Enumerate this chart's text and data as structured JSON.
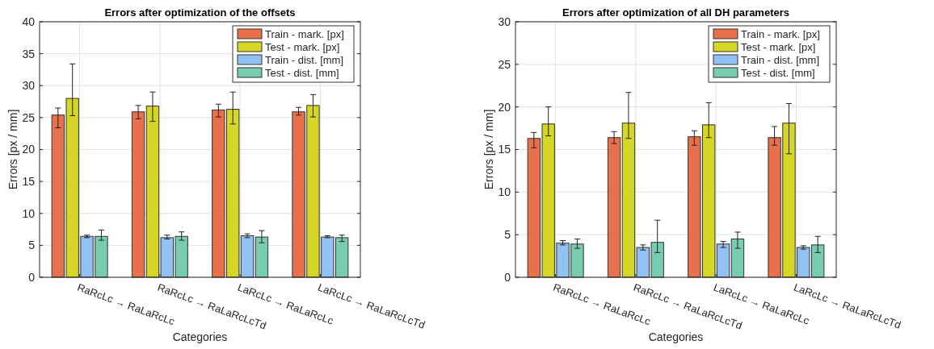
{
  "chart_data": [
    {
      "type": "bar",
      "title": "Errors after optimization of the offsets",
      "xlabel": "Categories",
      "ylabel": "Errors [px / mm]",
      "categories": [
        "RaRcLc → RaLaRcLc",
        "RaRcLc → RaLaRcLcTd",
        "LaRcLc → RaLaRcLc",
        "LaRcLc → RaLaRcLcTd"
      ],
      "ylim": [
        0,
        40
      ],
      "yticks": [
        0,
        5,
        10,
        15,
        20,
        25,
        30,
        35,
        40
      ],
      "grid": true,
      "legend": "top right",
      "series": [
        {
          "name": "Train - mark. [px]",
          "color": "#e8704a",
          "values": [
            25.4,
            25.9,
            26.2,
            25.9
          ],
          "errors": [
            [
              23.4,
              26.5
            ],
            [
              24.8,
              26.9
            ],
            [
              25.1,
              27.1
            ],
            [
              25.4,
              26.6
            ]
          ]
        },
        {
          "name": "Test - mark. [px]",
          "color": "#d6d626",
          "values": [
            28.0,
            26.8,
            26.3,
            26.9
          ],
          "errors": [
            [
              25.3,
              33.4
            ],
            [
              24.4,
              29.0
            ],
            [
              24.0,
              29.0
            ],
            [
              25.1,
              28.6
            ]
          ]
        },
        {
          "name": "Train - dist. [mm]",
          "color": "#92c1f3",
          "values": [
            6.4,
            6.2,
            6.5,
            6.3
          ],
          "errors": [
            [
              6.2,
              6.6
            ],
            [
              6.0,
              6.6
            ],
            [
              6.2,
              6.8
            ],
            [
              6.2,
              6.5
            ]
          ]
        },
        {
          "name": "Test - dist. [mm]",
          "color": "#77ccb2",
          "values": [
            6.4,
            6.4,
            6.3,
            6.2
          ],
          "errors": [
            [
              5.8,
              7.4
            ],
            [
              5.8,
              7.1
            ],
            [
              5.4,
              7.3
            ],
            [
              5.6,
              6.6
            ]
          ]
        }
      ]
    },
    {
      "type": "bar",
      "title": "Errors after optimization of all DH parameters",
      "xlabel": "Categories",
      "ylabel": "Errors [px / mm]",
      "categories": [
        "RaRcLc → RaLaRcLc",
        "RaRcLc → RaLaRcLcTd",
        "LaRcLc → RaLaRcLc",
        "LaRcLc → RaLaRcLcTd"
      ],
      "ylim": [
        0,
        30
      ],
      "yticks": [
        0,
        5,
        10,
        15,
        20,
        25,
        30
      ],
      "grid": true,
      "legend": "top right",
      "series": [
        {
          "name": "Train - mark. [px]",
          "color": "#e8704a",
          "values": [
            16.3,
            16.4,
            16.5,
            16.4
          ],
          "errors": [
            [
              15.2,
              17.0
            ],
            [
              15.7,
              17.1
            ],
            [
              15.5,
              17.2
            ],
            [
              15.5,
              17.7
            ]
          ]
        },
        {
          "name": "Test - mark. [px]",
          "color": "#d6d626",
          "values": [
            18.0,
            18.1,
            17.9,
            18.1
          ],
          "errors": [
            [
              16.6,
              20.0
            ],
            [
              16.3,
              21.7
            ],
            [
              16.4,
              20.5
            ],
            [
              14.5,
              20.4
            ]
          ]
        },
        {
          "name": "Train - dist. [mm]",
          "color": "#92c1f3",
          "values": [
            4.0,
            3.5,
            3.9,
            3.5
          ],
          "errors": [
            [
              3.8,
              4.3
            ],
            [
              3.2,
              3.8
            ],
            [
              3.5,
              4.2
            ],
            [
              3.3,
              3.7
            ]
          ]
        },
        {
          "name": "Test - dist. [mm]",
          "color": "#77ccb2",
          "values": [
            3.9,
            4.1,
            4.5,
            3.8
          ],
          "errors": [
            [
              3.4,
              4.5
            ],
            [
              2.9,
              6.7
            ],
            [
              3.4,
              5.3
            ],
            [
              2.9,
              4.8
            ]
          ]
        }
      ]
    }
  ]
}
